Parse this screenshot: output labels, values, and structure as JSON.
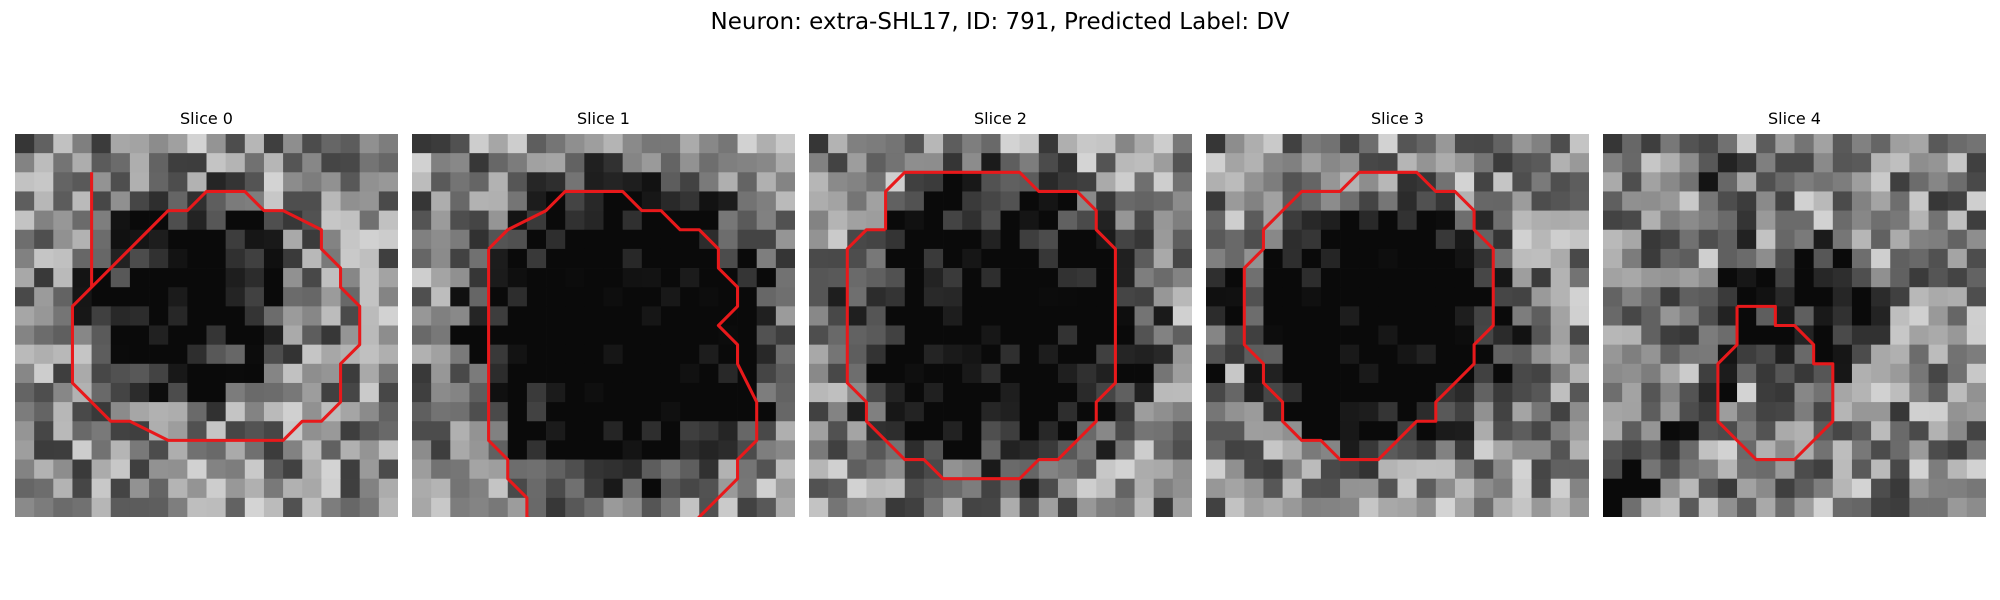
{
  "figure": {
    "title": "Neuron: extra-SHL17, ID: 791, Predicted Label: DV"
  },
  "panels": [
    {
      "title": "Slice 0",
      "blob": [
        0.45,
        0.42,
        0.27,
        0.55
      ],
      "outline": [
        [
          4,
          2
        ],
        [
          4,
          8
        ],
        [
          3,
          9
        ],
        [
          3,
          13
        ],
        [
          5,
          15
        ],
        [
          6,
          15
        ],
        [
          8,
          16
        ],
        [
          14,
          16
        ],
        [
          15,
          15
        ],
        [
          16,
          15
        ],
        [
          17,
          14
        ],
        [
          17,
          12
        ],
        [
          18,
          11
        ],
        [
          18,
          9
        ],
        [
          17,
          8
        ],
        [
          17,
          7
        ],
        [
          16,
          6
        ],
        [
          16,
          5
        ],
        [
          14,
          4
        ],
        [
          13,
          4
        ],
        [
          12,
          3
        ],
        [
          11,
          3
        ],
        [
          10,
          3
        ],
        [
          9,
          4
        ],
        [
          8,
          4
        ],
        [
          7,
          5
        ],
        [
          6,
          6
        ],
        [
          5,
          7
        ],
        [
          4,
          8
        ]
      ]
    },
    {
      "title": "Slice 1",
      "blob": [
        0.55,
        0.52,
        0.4,
        0.72
      ],
      "outline": [
        [
          4,
          6
        ],
        [
          5,
          5
        ],
        [
          7,
          4
        ],
        [
          8,
          3
        ],
        [
          9,
          3
        ],
        [
          11,
          3
        ],
        [
          12,
          4
        ],
        [
          13,
          4
        ],
        [
          14,
          5
        ],
        [
          15,
          5
        ],
        [
          16,
          6
        ],
        [
          16,
          7
        ],
        [
          17,
          8
        ],
        [
          17,
          9
        ],
        [
          16,
          10
        ],
        [
          17,
          11
        ],
        [
          17,
          12
        ],
        [
          18,
          14
        ],
        [
          18,
          16
        ],
        [
          17,
          17
        ],
        [
          17,
          18
        ],
        [
          16,
          19
        ],
        [
          15,
          20
        ],
        [
          14,
          21
        ],
        [
          13,
          21
        ],
        [
          8,
          21
        ],
        [
          6,
          20
        ],
        [
          6,
          19
        ],
        [
          5,
          18
        ],
        [
          5,
          17
        ],
        [
          4,
          16
        ],
        [
          4,
          8
        ],
        [
          4,
          6
        ]
      ]
    },
    {
      "title": "Slice 2",
      "blob": [
        0.5,
        0.5,
        0.39,
        0.62
      ],
      "outline": [
        [
          4,
          5
        ],
        [
          4,
          3
        ],
        [
          5,
          2
        ],
        [
          6,
          2
        ],
        [
          11,
          2
        ],
        [
          12,
          3
        ],
        [
          14,
          3
        ],
        [
          15,
          4
        ],
        [
          15,
          5
        ],
        [
          16,
          6
        ],
        [
          16,
          9
        ],
        [
          16,
          13
        ],
        [
          15,
          14
        ],
        [
          15,
          15
        ],
        [
          14,
          16
        ],
        [
          13,
          17
        ],
        [
          12,
          17
        ],
        [
          11,
          18
        ],
        [
          10,
          18
        ],
        [
          7,
          18
        ],
        [
          6,
          17
        ],
        [
          5,
          17
        ],
        [
          4,
          16
        ],
        [
          3,
          15
        ],
        [
          3,
          14
        ],
        [
          2,
          13
        ],
        [
          2,
          6
        ],
        [
          3,
          5
        ],
        [
          4,
          5
        ]
      ]
    },
    {
      "title": "Slice 3",
      "blob": [
        0.46,
        0.5,
        0.33,
        0.72
      ],
      "outline": [
        [
          6,
          3
        ],
        [
          7,
          3
        ],
        [
          8,
          2
        ],
        [
          11,
          2
        ],
        [
          12,
          3
        ],
        [
          13,
          3
        ],
        [
          14,
          4
        ],
        [
          14,
          5
        ],
        [
          15,
          6
        ],
        [
          15,
          10
        ],
        [
          14,
          11
        ],
        [
          14,
          12
        ],
        [
          13,
          13
        ],
        [
          12,
          14
        ],
        [
          12,
          15
        ],
        [
          11,
          15
        ],
        [
          10,
          16
        ],
        [
          9,
          17
        ],
        [
          8,
          17
        ],
        [
          7,
          17
        ],
        [
          6,
          16
        ],
        [
          5,
          16
        ],
        [
          4,
          15
        ],
        [
          4,
          14
        ],
        [
          3,
          13
        ],
        [
          3,
          12
        ],
        [
          2,
          11
        ],
        [
          2,
          7
        ],
        [
          3,
          6
        ],
        [
          3,
          5
        ],
        [
          4,
          4
        ],
        [
          5,
          3
        ],
        [
          6,
          3
        ]
      ]
    },
    {
      "title": "Slice 4",
      "blob": [
        0.55,
        0.46,
        0.18,
        0.45
      ],
      "outline": [
        [
          7,
          9
        ],
        [
          8,
          9
        ],
        [
          9,
          9
        ],
        [
          9,
          10
        ],
        [
          10,
          10
        ],
        [
          11,
          11
        ],
        [
          11,
          12
        ],
        [
          12,
          12
        ],
        [
          12,
          15
        ],
        [
          11,
          16
        ],
        [
          10,
          17
        ],
        [
          8,
          17
        ],
        [
          7,
          16
        ],
        [
          6,
          15
        ],
        [
          6,
          12
        ],
        [
          7,
          11
        ],
        [
          7,
          10
        ],
        [
          7,
          9
        ]
      ]
    }
  ],
  "colors": {
    "outline": "#e8191b",
    "background": "#ffffff"
  }
}
